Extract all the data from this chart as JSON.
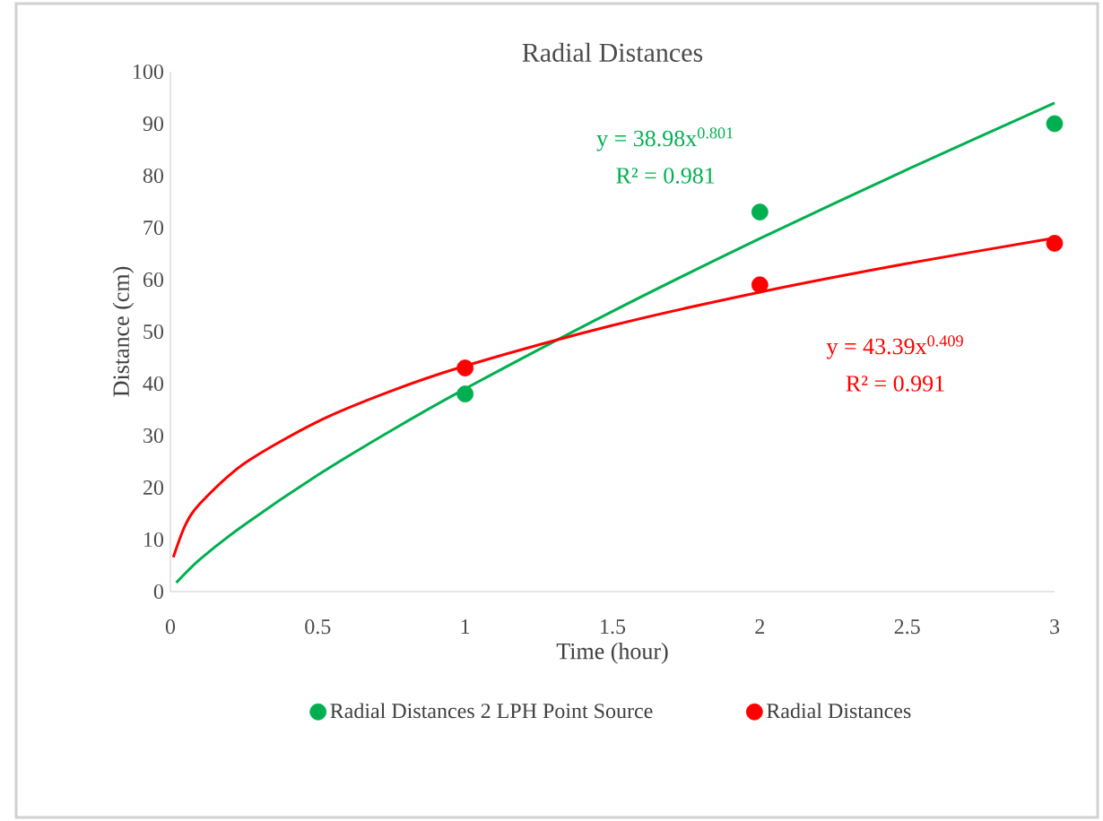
{
  "chart_data": {
    "type": "scatter",
    "title": "Radial Distances",
    "xlabel": "Time (hour)",
    "ylabel": "Distance (cm)",
    "xlim": [
      0,
      3
    ],
    "ylim": [
      0,
      100
    ],
    "xticks": [
      0,
      0.5,
      1,
      1.5,
      2,
      2.5,
      3
    ],
    "yticks": [
      0,
      10,
      20,
      30,
      40,
      50,
      60,
      70,
      80,
      90,
      100
    ],
    "grid": false,
    "legend": "bottom",
    "series": [
      {
        "name": "Radial Distances 2 LPH Point Source",
        "marker": "circle",
        "color": "#00b050",
        "x": [
          1,
          2,
          3
        ],
        "values": [
          38,
          73,
          90
        ]
      },
      {
        "name": "Radial Distances",
        "marker": "circle",
        "color": "#ff0000",
        "x": [
          1,
          2,
          3
        ],
        "values": [
          43,
          59,
          67
        ]
      },
      {
        "type": "line",
        "marker": "none",
        "color": "#00b050",
        "x": [
          0.02,
          0.1,
          0.25,
          0.5,
          0.75,
          1,
          1.5,
          2,
          2.5,
          3
        ],
        "values": [
          1.7,
          6.2,
          12.8,
          22.4,
          31.0,
          39.0,
          53.9,
          67.9,
          81.2,
          94.0
        ]
      },
      {
        "type": "line",
        "marker": "none",
        "color": "#ff0000",
        "x": [
          0.01,
          0.05,
          0.1,
          0.25,
          0.5,
          0.75,
          1,
          1.5,
          2,
          2.5,
          3
        ],
        "values": [
          6.6,
          12.7,
          16.9,
          24.6,
          32.7,
          38.6,
          43.4,
          51.2,
          57.6,
          63.1,
          68.0
        ]
      }
    ],
    "annotations": [
      "y = 38.98x$^{0.801}$",
      "R² = 0.981",
      "y = 43.39x$^{0.409}$",
      "R² = 0.991"
    ]
  }
}
